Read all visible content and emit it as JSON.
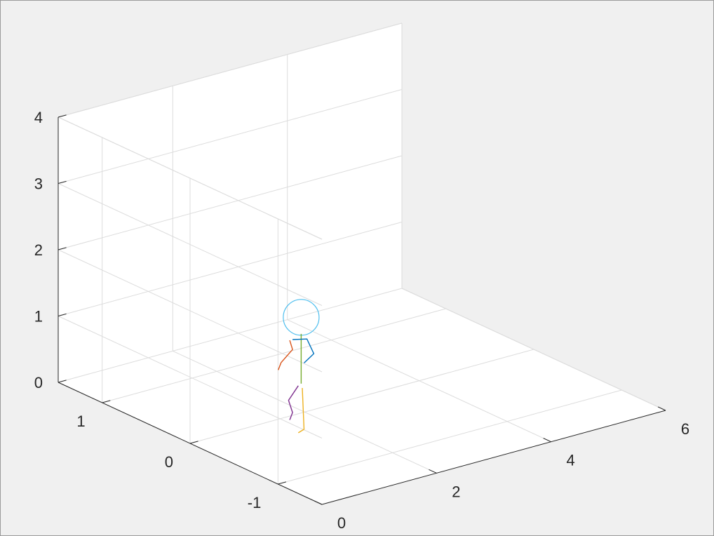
{
  "chart_data": {
    "type": "line3d",
    "title": "",
    "xlabel": "",
    "ylabel": "",
    "zlabel": "",
    "xlim": [
      0,
      6
    ],
    "ylim": [
      -1.5,
      1.5
    ],
    "zlim": [
      0,
      4
    ],
    "x_ticks": [
      "0",
      "2",
      "4",
      "6"
    ],
    "y_ticks": [
      "-1",
      "0",
      "1"
    ],
    "z_ticks": [
      "0",
      "1",
      "2",
      "3",
      "4"
    ],
    "grid": true,
    "series": [
      {
        "color": "#4DBEEE",
        "shape": "circle",
        "center": [
          2.4,
          0.3,
          1.15
        ],
        "radius": 0.27
      },
      {
        "color": "#77AC30",
        "points": [
          [
            2.4,
            0.3,
            0.15
          ],
          [
            2.4,
            0.3,
            0.9
          ]
        ]
      },
      {
        "color": "#0072BD",
        "points": [
          [
            2.25,
            0.3,
            0.85
          ],
          [
            2.5,
            0.3,
            0.8
          ],
          [
            2.62,
            0.3,
            0.55
          ],
          [
            2.45,
            0.3,
            0.45
          ]
        ]
      },
      {
        "color": "#D95319",
        "points": [
          [
            2.2,
            0.3,
            0.85
          ],
          [
            2.25,
            0.3,
            0.7
          ],
          [
            2.05,
            0.3,
            0.55
          ],
          [
            2.0,
            0.3,
            0.45
          ]
        ]
      },
      {
        "color": "#7E2F8E",
        "points": [
          [
            2.35,
            0.3,
            0.13
          ],
          [
            2.18,
            0.3,
            -0.05
          ],
          [
            2.25,
            0.3,
            -0.25
          ],
          [
            2.2,
            0.3,
            -0.35
          ]
        ]
      },
      {
        "color": "#EDB120",
        "points": [
          [
            2.42,
            0.3,
            0.08
          ],
          [
            2.45,
            0.3,
            -0.55
          ],
          [
            2.35,
            0.3,
            -0.58
          ]
        ]
      }
    ]
  }
}
